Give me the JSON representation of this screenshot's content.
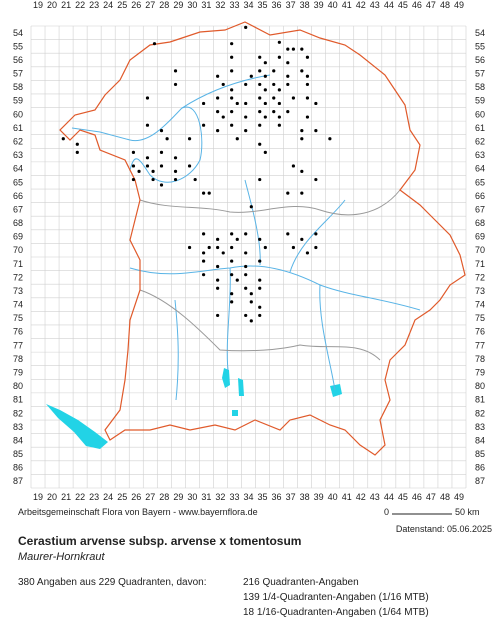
{
  "map": {
    "columns": [
      19,
      20,
      21,
      22,
      23,
      24,
      25,
      26,
      27,
      28,
      29,
      30,
      31,
      32,
      33,
      34,
      35,
      36,
      37,
      38,
      39,
      40,
      41,
      42,
      43,
      44,
      45,
      46,
      47,
      48,
      49
    ],
    "rows": [
      54,
      55,
      56,
      57,
      58,
      59,
      60,
      61,
      62,
      63,
      64,
      65,
      66,
      67,
      68,
      69,
      70,
      71,
      72,
      73,
      74,
      75,
      76,
      77,
      78,
      79,
      80,
      81,
      82,
      83,
      84,
      85,
      86,
      87
    ],
    "records": [
      [
        34.3,
        54.1
      ],
      [
        33.3,
        55.3
      ],
      [
        36.7,
        55.2
      ],
      [
        37.3,
        55.7
      ],
      [
        37.7,
        55.7
      ],
      [
        38.3,
        55.7
      ],
      [
        33.3,
        56.3
      ],
      [
        35.3,
        56.3
      ],
      [
        35.7,
        56.7
      ],
      [
        36.7,
        56.3
      ],
      [
        37.3,
        56.7
      ],
      [
        38.7,
        56.3
      ],
      [
        27.8,
        55.3
      ],
      [
        29.3,
        57.3
      ],
      [
        32.3,
        57.7
      ],
      [
        33.3,
        57.3
      ],
      [
        34.7,
        57.7
      ],
      [
        35.3,
        57.3
      ],
      [
        35.7,
        57.7
      ],
      [
        36.3,
        57.3
      ],
      [
        37.3,
        57.7
      ],
      [
        38.3,
        57.3
      ],
      [
        38.7,
        57.7
      ],
      [
        29.3,
        58.3
      ],
      [
        32.7,
        58.3
      ],
      [
        33.3,
        58.7
      ],
      [
        34.3,
        58.3
      ],
      [
        35.3,
        58.3
      ],
      [
        35.7,
        58.7
      ],
      [
        36.3,
        58.3
      ],
      [
        36.7,
        58.7
      ],
      [
        37.3,
        58.3
      ],
      [
        38.7,
        58.3
      ],
      [
        27.3,
        59.3
      ],
      [
        31.3,
        59.7
      ],
      [
        32.3,
        59.3
      ],
      [
        33.3,
        59.3
      ],
      [
        33.7,
        59.7
      ],
      [
        34.3,
        59.7
      ],
      [
        35.3,
        59.3
      ],
      [
        35.7,
        59.7
      ],
      [
        36.3,
        59.3
      ],
      [
        36.7,
        59.7
      ],
      [
        37.7,
        59.3
      ],
      [
        38.7,
        59.3
      ],
      [
        39.3,
        59.7
      ],
      [
        32.3,
        60.3
      ],
      [
        32.7,
        60.7
      ],
      [
        33.3,
        60.3
      ],
      [
        34.3,
        60.7
      ],
      [
        35.3,
        60.3
      ],
      [
        35.7,
        60.7
      ],
      [
        36.3,
        60.3
      ],
      [
        36.7,
        60.7
      ],
      [
        37.3,
        60.3
      ],
      [
        38.7,
        60.7
      ],
      [
        27.3,
        61.3
      ],
      [
        28.3,
        61.7
      ],
      [
        31.3,
        61.3
      ],
      [
        32.3,
        61.7
      ],
      [
        33.3,
        61.3
      ],
      [
        34.3,
        61.7
      ],
      [
        35.3,
        61.3
      ],
      [
        36.7,
        61.3
      ],
      [
        38.3,
        61.7
      ],
      [
        39.3,
        61.7
      ],
      [
        21.3,
        62.3
      ],
      [
        22.3,
        62.7
      ],
      [
        28.7,
        62.3
      ],
      [
        30.3,
        62.3
      ],
      [
        33.7,
        62.3
      ],
      [
        35.3,
        62.7
      ],
      [
        38.3,
        62.3
      ],
      [
        40.3,
        62.3
      ],
      [
        22.3,
        63.3
      ],
      [
        26.3,
        63.3
      ],
      [
        27.3,
        63.7
      ],
      [
        28.3,
        63.3
      ],
      [
        29.3,
        63.7
      ],
      [
        35.7,
        63.3
      ],
      [
        26.3,
        64.3
      ],
      [
        26.7,
        64.7
      ],
      [
        27.3,
        64.3
      ],
      [
        27.7,
        64.7
      ],
      [
        28.3,
        64.3
      ],
      [
        29.3,
        64.7
      ],
      [
        30.3,
        64.3
      ],
      [
        37.7,
        64.3
      ],
      [
        38.3,
        64.7
      ],
      [
        26.3,
        65.3
      ],
      [
        27.7,
        65.3
      ],
      [
        28.3,
        65.7
      ],
      [
        29.3,
        65.3
      ],
      [
        30.7,
        65.3
      ],
      [
        35.3,
        65.3
      ],
      [
        39.3,
        65.3
      ],
      [
        31.3,
        66.3
      ],
      [
        31.7,
        66.3
      ],
      [
        37.3,
        66.3
      ],
      [
        38.3,
        66.3
      ],
      [
        34.7,
        67.3
      ],
      [
        31.3,
        69.3
      ],
      [
        32.3,
        69.7
      ],
      [
        33.3,
        69.3
      ],
      [
        33.7,
        69.7
      ],
      [
        34.3,
        69.3
      ],
      [
        35.3,
        69.7
      ],
      [
        37.3,
        69.3
      ],
      [
        38.3,
        69.7
      ],
      [
        39.3,
        69.3
      ],
      [
        30.3,
        70.3
      ],
      [
        31.3,
        70.7
      ],
      [
        31.7,
        70.3
      ],
      [
        32.3,
        70.3
      ],
      [
        32.7,
        70.7
      ],
      [
        33.3,
        70.3
      ],
      [
        34.3,
        70.7
      ],
      [
        35.7,
        70.3
      ],
      [
        37.7,
        70.3
      ],
      [
        38.7,
        70.7
      ],
      [
        39.3,
        70.3
      ],
      [
        31.3,
        71.3
      ],
      [
        32.3,
        71.7
      ],
      [
        33.3,
        71.3
      ],
      [
        34.3,
        71.7
      ],
      [
        35.3,
        71.3
      ],
      [
        31.3,
        72.3
      ],
      [
        32.3,
        72.7
      ],
      [
        33.3,
        72.3
      ],
      [
        33.7,
        72.7
      ],
      [
        34.3,
        72.3
      ],
      [
        35.3,
        72.7
      ],
      [
        32.3,
        73.3
      ],
      [
        33.3,
        73.7
      ],
      [
        34.3,
        73.3
      ],
      [
        34.7,
        73.7
      ],
      [
        35.3,
        73.3
      ],
      [
        33.3,
        74.3
      ],
      [
        34.7,
        74.3
      ],
      [
        35.3,
        74.7
      ],
      [
        32.3,
        75.3
      ],
      [
        34.3,
        75.3
      ],
      [
        34.7,
        75.7
      ],
      [
        35.3,
        75.3
      ]
    ],
    "credit": "Arbeitsgemeinschaft Flora von Bayern - www.bayernflora.de",
    "scale_start": "0",
    "scale_end": "50 km",
    "date": "Datenstand: 05.06.2025"
  },
  "species": {
    "title": "Cerastium arvense subsp. arvense x tomentosum",
    "common_name": "Maurer-Hornkraut"
  },
  "stats": {
    "summary": "380 Angaben aus 229 Quadranten, davon:",
    "lines": [
      "216 Quadranten-Angaben",
      "139 1/4-Quadranten-Angaben (1/16 MTB)",
      "18 1/16-Quadranten-Angaben (1/64 MTB)"
    ]
  }
}
